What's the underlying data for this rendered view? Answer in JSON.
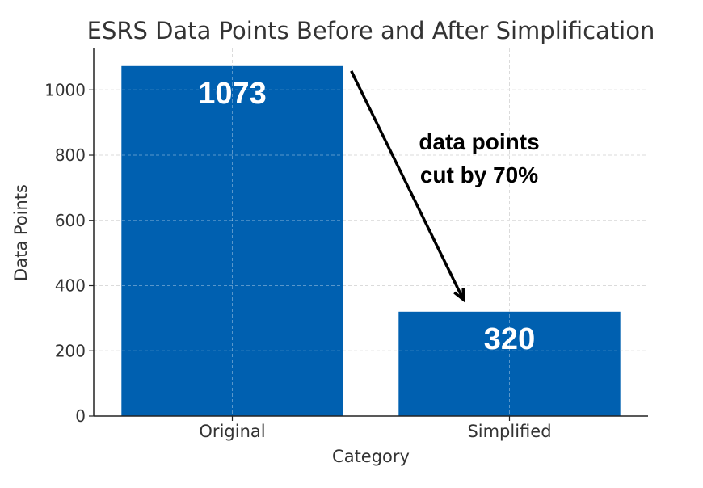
{
  "chart_data": {
    "type": "bar",
    "title": "ESRS Data Points Before and After Simplification",
    "xlabel": "Category",
    "ylabel": "Data Points",
    "categories": [
      "Original",
      "Simplified"
    ],
    "values": [
      1073,
      320
    ],
    "data_labels": [
      "1073",
      "320"
    ],
    "ylim": [
      0,
      1127
    ],
    "yticks": [
      0,
      200,
      400,
      600,
      800,
      1000
    ],
    "grid": true,
    "bar_color": "#0060B0",
    "annotation": {
      "lines": [
        "data points",
        "cut by 70%"
      ],
      "arrow_from": {
        "category": "Original",
        "value": 1073
      },
      "arrow_to": {
        "category": "Simplified",
        "value": 360
      }
    }
  }
}
